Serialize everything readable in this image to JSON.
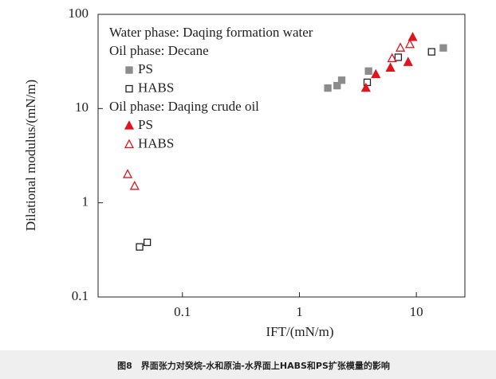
{
  "chart_data": {
    "type": "scatter",
    "x_label": "IFT/(mN/m)",
    "y_label": "Dilational modulus/(mN/m)",
    "x_log": true,
    "y_log": true,
    "xlim": [
      0.019,
      26
    ],
    "ylim": [
      0.1,
      100
    ],
    "xticks": [
      0.1,
      1,
      10
    ],
    "yticks": [
      0.1,
      1,
      10,
      100
    ],
    "legend_headings": [
      "Water phase: Daqing formation water",
      "Oil phase: Decane",
      "Oil phase: Daqing crude oil"
    ],
    "series": [
      {
        "name": "PS",
        "group": 1,
        "marker": "square",
        "filled": true,
        "color": "#8c8c8c",
        "x": [
          1.75,
          2.1,
          2.3,
          3.9,
          17
        ],
        "values": [
          16.5,
          17.5,
          20,
          25,
          44
        ]
      },
      {
        "name": "HABS",
        "group": 1,
        "marker": "square",
        "filled": false,
        "color": "#222222",
        "x": [
          0.043,
          0.05,
          3.8,
          7,
          13.5
        ],
        "values": [
          0.34,
          0.38,
          19,
          35,
          40
        ]
      },
      {
        "name": "PS",
        "group": 2,
        "marker": "triangle",
        "filled": true,
        "color": "#e0141e",
        "x": [
          3.7,
          4.5,
          6,
          8.5,
          9.3
        ],
        "values": [
          16.5,
          23,
          27,
          31,
          57
        ]
      },
      {
        "name": "HABS",
        "group": 2,
        "marker": "triangle",
        "filled": false,
        "color": "#e0141e",
        "x": [
          0.034,
          0.039,
          6.2,
          7.3,
          8.8
        ],
        "values": [
          2.0,
          1.5,
          34,
          44,
          48
        ]
      }
    ]
  },
  "caption": "图8　界面张力对癸烷-水和原油-水界面上HABS和PS扩张模量的影响"
}
